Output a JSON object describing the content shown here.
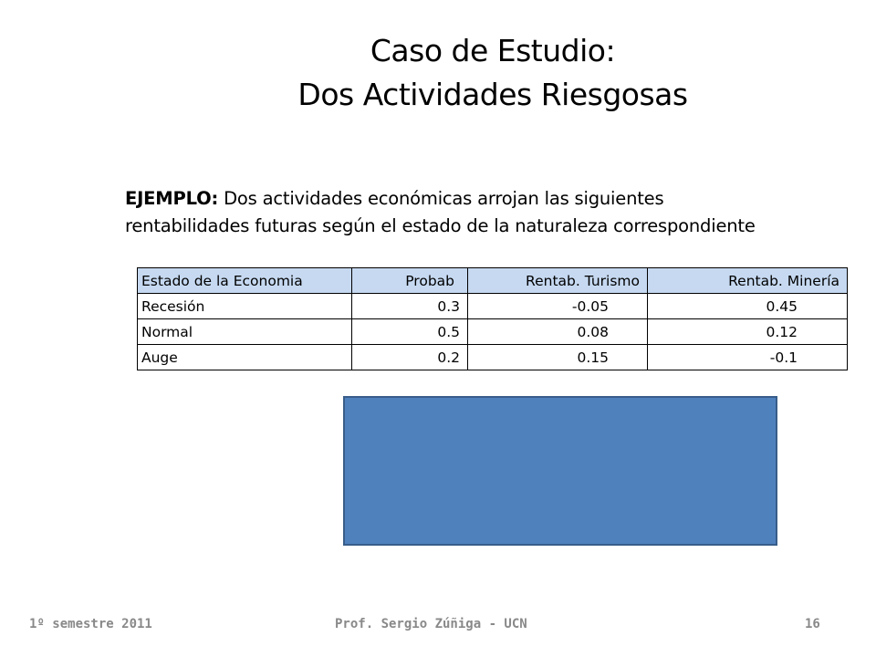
{
  "slide": {
    "title_line1": "Caso de Estudio:",
    "title_line2": "Dos Actividades Riesgosas",
    "example_lead": "EJEMPLO:",
    "example_text_line1": " Dos actividades económicas arrojan las siguientes",
    "example_text_line2": "rentabilidades futuras según el estado de la naturaleza correspondiente"
  },
  "table": {
    "headers": [
      "Estado de la Economia",
      "Probab",
      "Rentab. Turismo",
      "Rentab. Minería"
    ],
    "rows": [
      [
        "Recesión",
        "0.3",
        "-0.05",
        "0.45"
      ],
      [
        "Normal",
        "0.5",
        "0.08",
        "0.12"
      ],
      [
        "Auge",
        "0.2",
        "0.15",
        "-0.1"
      ]
    ],
    "header_color": "#c6d9f1"
  },
  "box": {
    "color": "#4f81bd"
  },
  "footer": {
    "left": "1º semestre 2011",
    "center": "Prof. Sergio Zúñiga - UCN",
    "page": "16"
  }
}
